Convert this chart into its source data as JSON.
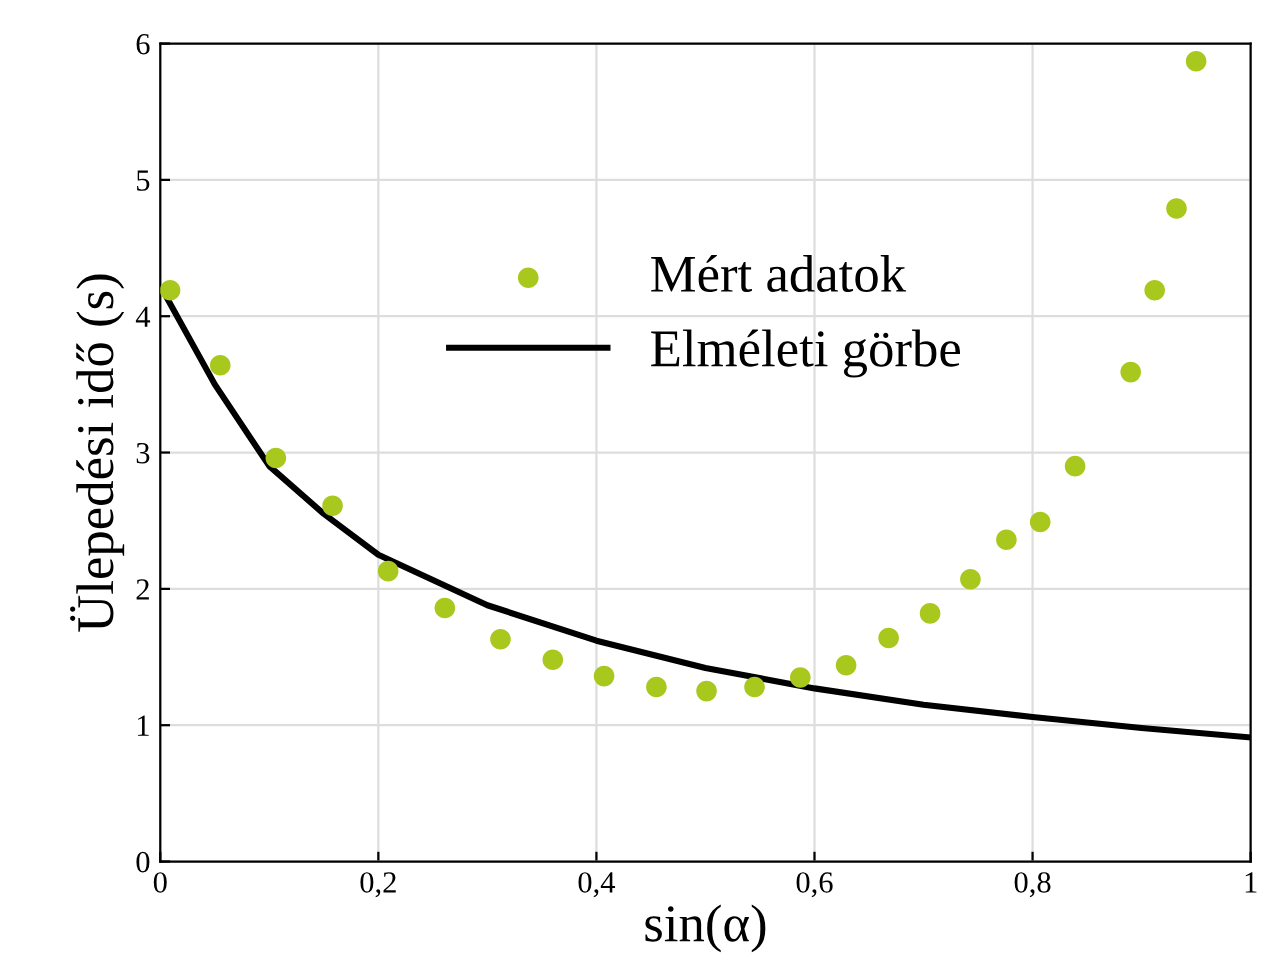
{
  "chart_data": {
    "type": "scatter",
    "xlabel": "sin(α)",
    "ylabel": "Ülepedési idő (s)",
    "xlim": [
      0,
      1
    ],
    "ylim": [
      0,
      6
    ],
    "xticks": [
      0,
      {
        "value": 0.2,
        "label": "0,2"
      },
      {
        "value": 0.4,
        "label": "0,4"
      },
      {
        "value": 0.6,
        "label": "0,6"
      },
      {
        "value": 0.8,
        "label": "0,8"
      },
      1
    ],
    "yticks": [
      0,
      1,
      2,
      3,
      4,
      5,
      6
    ],
    "grid": true,
    "legend": "top",
    "series": [
      {
        "name": "Mért adatok",
        "marker": "circle",
        "color": "#a8c81e",
        "x": [
          0.009,
          0.055,
          0.106,
          0.158,
          0.209,
          0.261,
          0.312,
          0.36,
          0.407,
          0.455,
          0.501,
          0.545,
          0.587,
          0.629,
          0.668,
          0.706,
          0.743,
          0.776,
          0.807,
          0.839,
          0.89,
          0.912,
          0.932,
          0.95
        ],
        "values": [
          4.19,
          3.64,
          2.96,
          2.61,
          2.13,
          1.86,
          1.63,
          1.48,
          1.36,
          1.28,
          1.25,
          1.28,
          1.35,
          1.44,
          1.64,
          1.82,
          2.07,
          2.36,
          2.49,
          2.9,
          3.59,
          4.19,
          4.79,
          5.87
        ]
      },
      {
        "name": "Elméleti görbe",
        "type": "line",
        "color": "#000000",
        "line_style": "solid",
        "x": [
          0.005,
          0.05,
          0.1,
          0.15,
          0.2,
          0.3,
          0.4,
          0.5,
          0.6,
          0.7,
          0.8,
          0.9,
          1.0
        ],
        "values": [
          4.15,
          3.5,
          2.9,
          2.55,
          2.25,
          1.88,
          1.62,
          1.42,
          1.27,
          1.15,
          1.06,
          0.98,
          0.91
        ]
      }
    ]
  }
}
